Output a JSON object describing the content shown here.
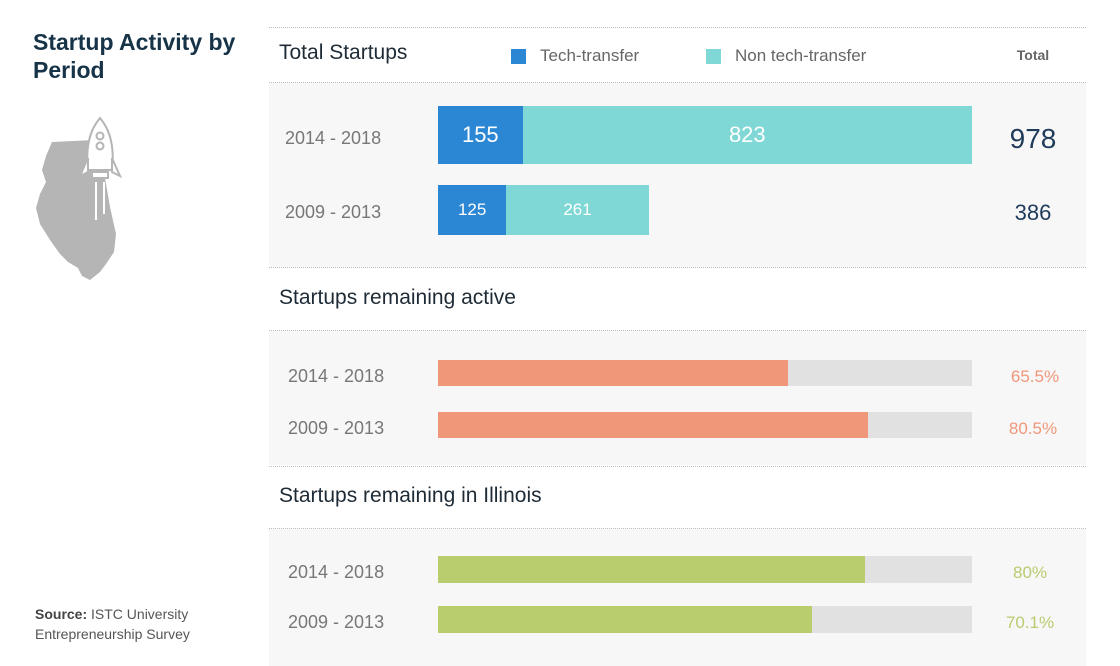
{
  "title": "Startup Activity by Period",
  "source_label": "Source:",
  "source_text": "ISTC University Entrepreneurship Survey",
  "colors": {
    "tech": "#2b86d4",
    "non_tech": "#7fd8d6",
    "active": "#f0977a",
    "illinois": "#b9cc6e",
    "track": "#e1e1e1",
    "illinois_map": "#b5b5b5"
  },
  "icons": [
    "illinois-map-icon",
    "rocket-icon"
  ],
  "chart_data": [
    {
      "type": "bar",
      "stacked": true,
      "orientation": "horizontal",
      "title": "Total Startups",
      "total_header": "Total",
      "categories": [
        "2014 - 2018",
        "2009 - 2013"
      ],
      "series": [
        {
          "name": "Tech-transfer",
          "values": [
            155,
            125
          ]
        },
        {
          "name": "Non tech-transfer",
          "values": [
            823,
            261
          ]
        }
      ],
      "totals": [
        978,
        386
      ],
      "xlim": [
        0,
        978
      ]
    },
    {
      "type": "bar",
      "orientation": "horizontal",
      "title": "Startups remaining active",
      "categories": [
        "2014 - 2018",
        "2009 - 2013"
      ],
      "values": [
        65.5,
        80.5
      ],
      "labels": [
        "65.5%",
        "80.5%"
      ],
      "xlim": [
        0,
        100
      ]
    },
    {
      "type": "bar",
      "orientation": "horizontal",
      "title": "Startups remaining in Illinois",
      "categories": [
        "2014 - 2018",
        "2009 - 2013"
      ],
      "values": [
        80,
        70.1
      ],
      "labels": [
        "80%",
        "70.1%"
      ],
      "xlim": [
        0,
        100
      ]
    }
  ]
}
